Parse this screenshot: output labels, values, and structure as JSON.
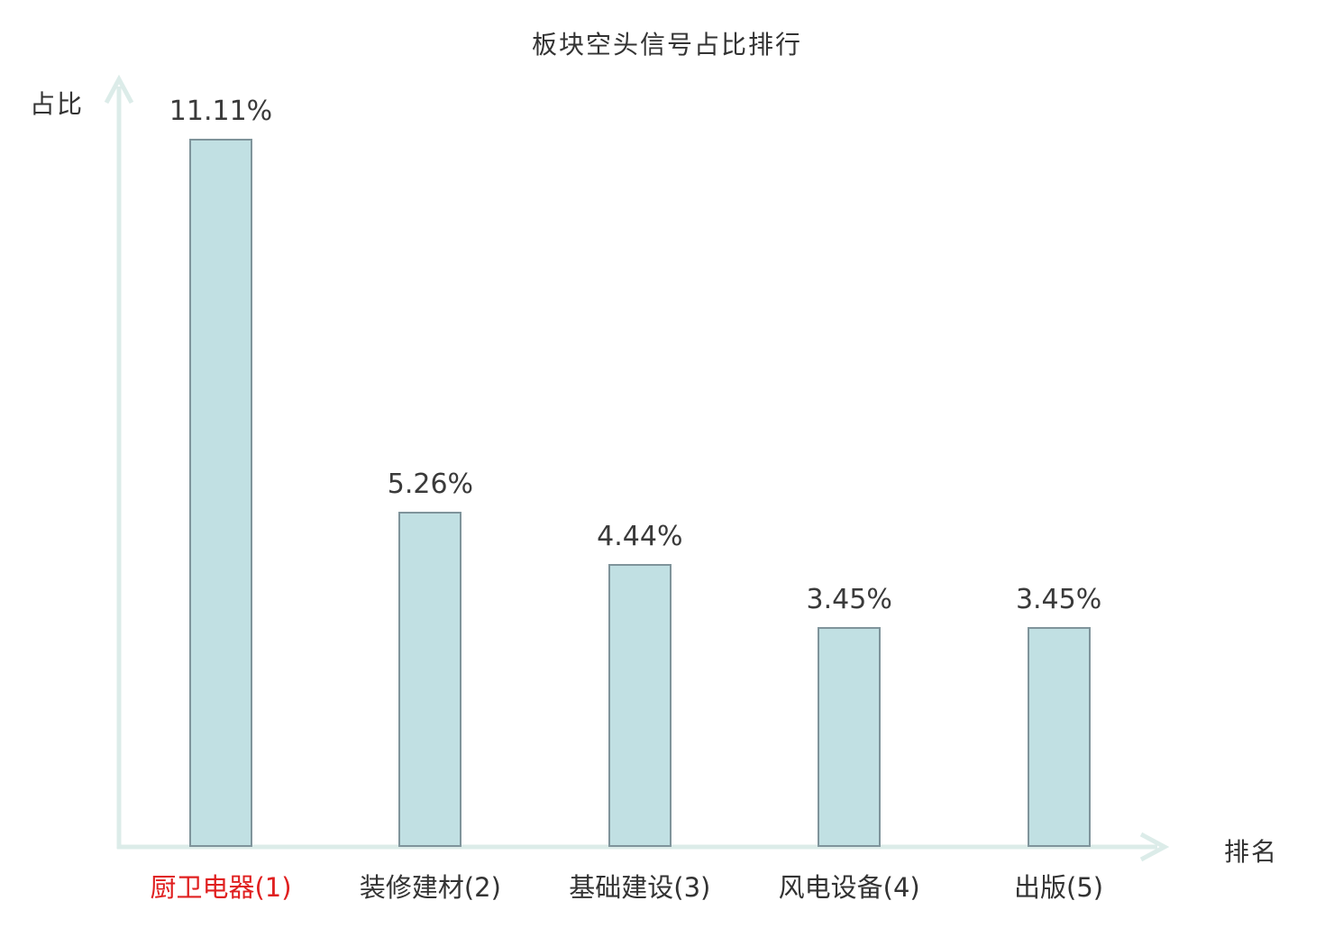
{
  "chart_data": {
    "type": "bar",
    "title": "板块空头信号占比排行",
    "xlabel": "排名",
    "ylabel": "占比",
    "categories": [
      "厨卫电器(1)",
      "装修建材(2)",
      "基础建设(3)",
      "风电设备(4)",
      "出版(5)"
    ],
    "values": [
      11.11,
      5.26,
      4.44,
      3.45,
      3.45
    ],
    "value_labels": [
      "11.11%",
      "5.26%",
      "4.44%",
      "3.45%",
      "3.45%"
    ],
    "highlight_index": 0,
    "legend_position": "none",
    "grid": false,
    "ylim": [
      0,
      11.11
    ],
    "colors": {
      "bar_fill": "#c1e0e3",
      "bar_border": "#7f949b",
      "axis": "#dcece9",
      "text_dark": "#333333",
      "value_text": "#3a3a3a",
      "highlight_text": "#e01f1f",
      "background": "#ffffff"
    }
  }
}
